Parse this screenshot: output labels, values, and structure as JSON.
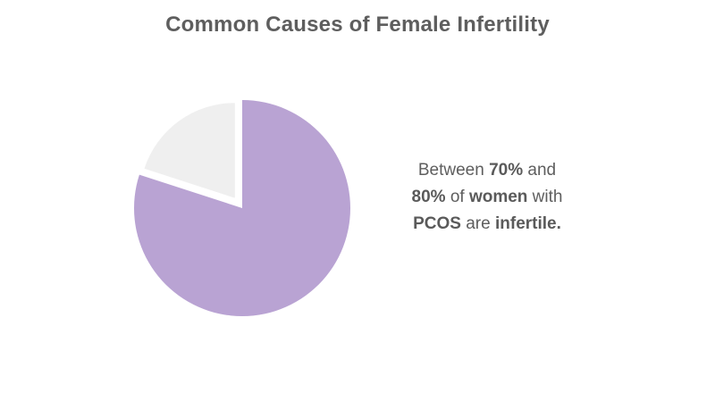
{
  "title": "Common Causes of Female Infertility",
  "chart_data": {
    "type": "pie",
    "title": "Common Causes of Female Infertility",
    "slices": [
      {
        "value": 80,
        "color": "#b9a3d3",
        "exploded": false
      },
      {
        "value": 20,
        "color": "#efefef",
        "exploded": true
      }
    ],
    "start_angle_deg": 0,
    "direction": "clockwise"
  },
  "callout": {
    "line1": {
      "t1": "Between ",
      "b1": "70%",
      "t2": " and"
    },
    "line2": {
      "b1": "80%",
      "t1": " of ",
      "b2": "women",
      "t2": " with"
    },
    "line3": {
      "b1": "PCOS",
      "t1": " are ",
      "b2": "infertile."
    }
  },
  "colors": {
    "title": "#5e5e5e",
    "text": "#5e5e5e",
    "background": "#ffffff"
  }
}
